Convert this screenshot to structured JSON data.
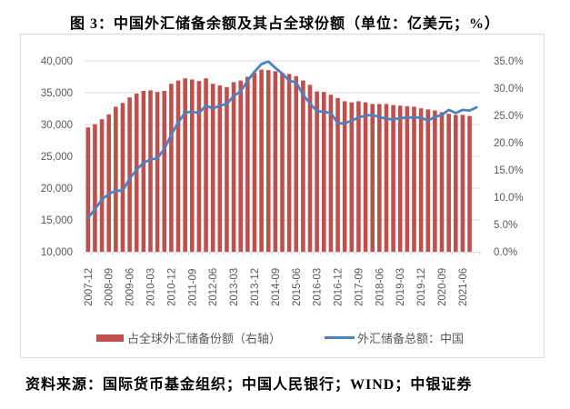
{
  "title": "图 3：中国外汇储备余额及其占全球份额（单位：亿美元；%）",
  "source": "资料来源：国际货币基金组织；中国人民银行；WIND；中银证券",
  "chart_data": {
    "type": "bar+line",
    "title": "图 3：中国外汇储备余额及其占全球份额（单位：亿美元；%）",
    "categories": [
      "2007-12",
      "2008-03",
      "2008-06",
      "2008-09",
      "2008-12",
      "2009-03",
      "2009-06",
      "2009-09",
      "2009-12",
      "2010-03",
      "2010-06",
      "2010-09",
      "2010-12",
      "2011-03",
      "2011-06",
      "2011-09",
      "2011-12",
      "2012-03",
      "2012-06",
      "2012-09",
      "2012-12",
      "2013-03",
      "2013-06",
      "2013-09",
      "2013-12",
      "2014-03",
      "2014-06",
      "2014-09",
      "2014-12",
      "2015-03",
      "2015-06",
      "2015-09",
      "2015-12",
      "2016-03",
      "2016-06",
      "2016-09",
      "2016-12",
      "2017-03",
      "2017-06",
      "2017-09",
      "2017-12",
      "2018-03",
      "2018-06",
      "2018-09",
      "2018-12",
      "2019-03",
      "2019-06",
      "2019-09",
      "2019-12",
      "2020-03",
      "2020-06",
      "2020-09",
      "2020-12",
      "2021-03",
      "2021-06",
      "2021-09",
      "2021-12"
    ],
    "x_tick_labels": [
      "2007-12",
      "2008-09",
      "2009-06",
      "2010-03",
      "2010-12",
      "2011-09",
      "2012-06",
      "2013-03",
      "2013-12",
      "2014-09",
      "2015-06",
      "2016-03",
      "2016-12",
      "2017-09",
      "2018-06",
      "2019-03",
      "2019-12",
      "2020-09",
      "2021-06"
    ],
    "left_axis": {
      "ylim": [
        10000,
        40000
      ],
      "ticks": [
        "10,000",
        "15,000",
        "20,000",
        "25,000",
        "30,000",
        "35,000",
        "40,000"
      ]
    },
    "right_axis": {
      "ylim": [
        0,
        35
      ],
      "ticks": [
        "0.0%",
        "5.0%",
        "10.0%",
        "15.0%",
        "20.0%",
        "25.0%",
        "30.0%",
        "35.0%"
      ]
    },
    "grid": true,
    "legend_position": "bottom",
    "series": [
      {
        "name": "占全球外汇储备份额（右轴）",
        "type": "bar",
        "axis": "right",
        "color": "#c0504d",
        "values": [
          22.8,
          23.4,
          24.3,
          25.2,
          26.6,
          27.3,
          28.3,
          29.0,
          29.5,
          29.6,
          29.3,
          29.5,
          30.8,
          31.4,
          31.8,
          31.6,
          31.3,
          31.8,
          30.8,
          30.5,
          30.2,
          31.1,
          31.4,
          32.1,
          32.8,
          33.4,
          33.3,
          33.1,
          32.8,
          32.6,
          32.2,
          31.4,
          30.6,
          29.4,
          29.3,
          28.8,
          28.2,
          27.6,
          27.4,
          27.6,
          27.4,
          27.1,
          27.1,
          27.1,
          26.9,
          26.8,
          26.7,
          26.6,
          26.3,
          26.1,
          25.9,
          25.6,
          25.3,
          25.1,
          25.1,
          24.9,
          null
        ]
      },
      {
        "name": "外汇储备总额：中国",
        "type": "line",
        "axis": "left",
        "color": "#4f81bd",
        "values": [
          15300,
          16700,
          18200,
          19100,
          19600,
          19600,
          21500,
          22900,
          24000,
          24500,
          24700,
          26200,
          28400,
          30300,
          31900,
          32000,
          31800,
          33000,
          32500,
          33000,
          33200,
          34500,
          35200,
          36900,
          38300,
          39500,
          39900,
          38900,
          38000,
          36900,
          36600,
          34700,
          33300,
          32100,
          32000,
          31800,
          30200,
          30200,
          30600,
          31100,
          31400,
          31500,
          31200,
          30900,
          30800,
          31000,
          31100,
          31100,
          31100,
          30600,
          31200,
          31500,
          32300,
          31800,
          32300,
          32200,
          32700
        ]
      }
    ]
  }
}
